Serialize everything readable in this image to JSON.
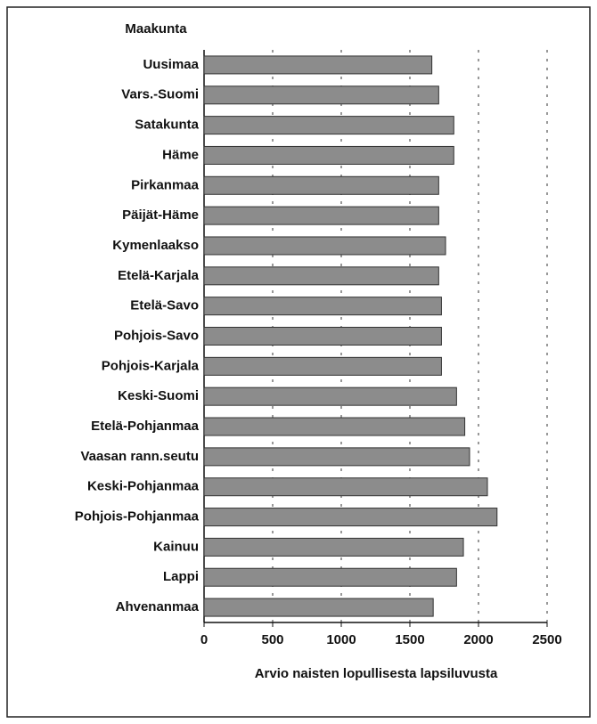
{
  "chart_data": {
    "type": "bar",
    "orientation": "horizontal",
    "y_label": "Maakunta",
    "x_label": "Arvio naisten lopullisesta lapsiluvusta",
    "categories": [
      "Uusimaa",
      "Vars.-Suomi",
      "Satakunta",
      "Häme",
      "Pirkanmaa",
      "Päijät-Häme",
      "Kymenlaakso",
      "Etelä-Karjala",
      "Etelä-Savo",
      "Pohjois-Savo",
      "Pohjois-Karjala",
      "Keski-Suomi",
      "Etelä-Pohjanmaa",
      "Vaasan rann.seutu",
      "Keski-Pohjanmaa",
      "Pohjois-Pohjanmaa",
      "Kainuu",
      "Lappi",
      "Ahvenanmaa"
    ],
    "values": [
      1660,
      1710,
      1820,
      1820,
      1710,
      1710,
      1760,
      1710,
      1730,
      1730,
      1730,
      1840,
      1900,
      1935,
      2065,
      2135,
      1890,
      1840,
      1670
    ],
    "color": "#8c8c8c",
    "xlim": [
      0,
      2500
    ],
    "xticks": [
      0,
      500,
      1000,
      1500,
      2000,
      2500
    ],
    "grid": true
  }
}
